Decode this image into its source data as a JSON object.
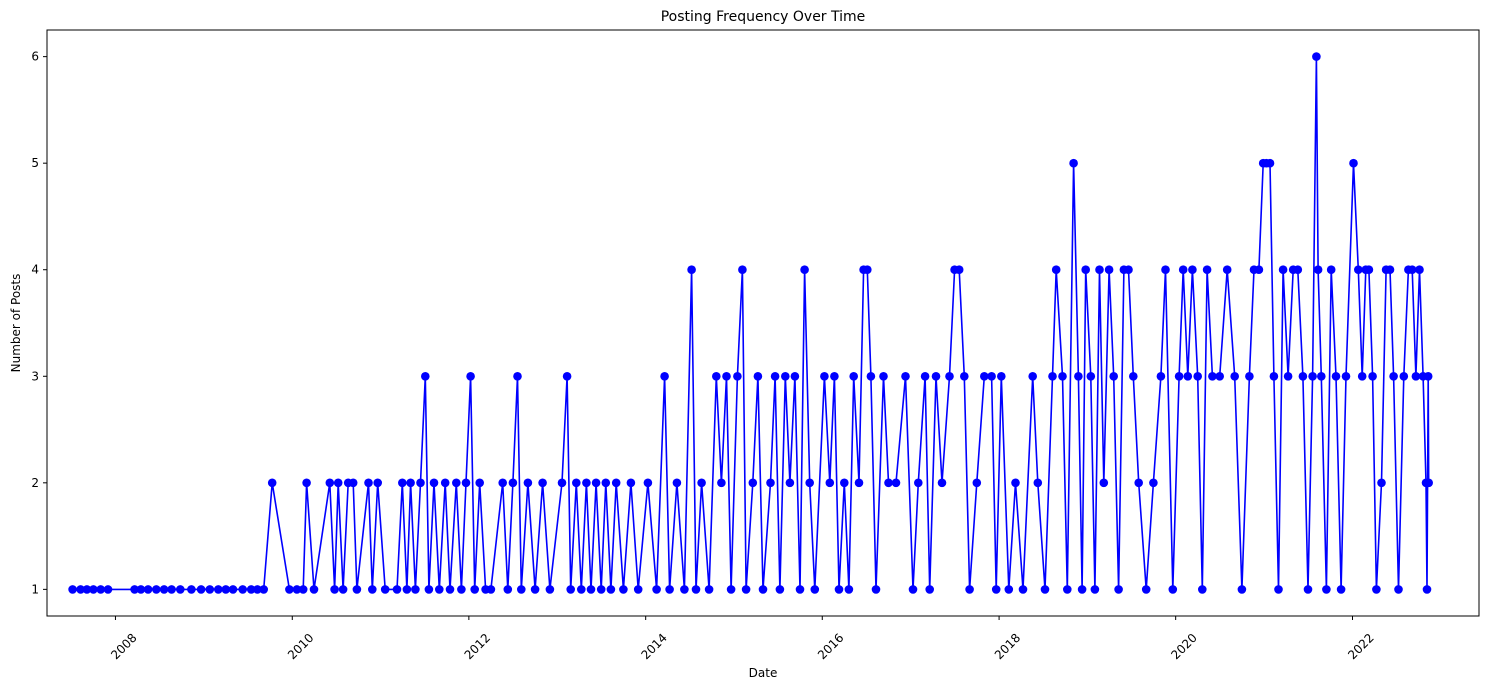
{
  "chart_data": {
    "type": "line",
    "title": "Posting Frequency Over Time",
    "xlabel": "Date",
    "ylabel": "Number of Posts",
    "x_tick_labels": [
      "2008",
      "2010",
      "2012",
      "2014",
      "2016",
      "2018",
      "2020",
      "2022"
    ],
    "y_tick_labels": [
      "1",
      "2",
      "3",
      "4",
      "5",
      "6"
    ],
    "xlim": [
      "2007-03-24",
      "2023-06-08"
    ],
    "ylim": [
      0.75,
      6.25
    ],
    "grid": false,
    "legend": "none",
    "line_color": "#0000ff",
    "marker": "filled-circle",
    "series": [
      {
        "points": [
          [
            "2007-07-08",
            1
          ],
          [
            "2007-08-10",
            1
          ],
          [
            "2007-09-05",
            1
          ],
          [
            "2007-10-02",
            1
          ],
          [
            "2007-11-01",
            1
          ],
          [
            "2007-12-01",
            1
          ],
          [
            "2008-03-20",
            1
          ],
          [
            "2008-04-15",
            1
          ],
          [
            "2008-05-15",
            1
          ],
          [
            "2008-06-18",
            1
          ],
          [
            "2008-07-20",
            1
          ],
          [
            "2008-08-20",
            1
          ],
          [
            "2008-09-25",
            1
          ],
          [
            "2008-11-10",
            1
          ],
          [
            "2008-12-20",
            1
          ],
          [
            "2009-01-25",
            1
          ],
          [
            "2009-03-01",
            1
          ],
          [
            "2009-04-01",
            1
          ],
          [
            "2009-05-01",
            1
          ],
          [
            "2009-06-10",
            1
          ],
          [
            "2009-07-15",
            1
          ],
          [
            "2009-08-10",
            1
          ],
          [
            "2009-09-05",
            1
          ],
          [
            "2009-10-10",
            2
          ],
          [
            "2009-12-20",
            1
          ],
          [
            "2010-01-20",
            1
          ],
          [
            "2010-02-15",
            1
          ],
          [
            "2010-03-01",
            2
          ],
          [
            "2010-04-01",
            1
          ],
          [
            "2010-06-05",
            2
          ],
          [
            "2010-06-25",
            1
          ],
          [
            "2010-07-10",
            2
          ],
          [
            "2010-07-30",
            1
          ],
          [
            "2010-08-20",
            2
          ],
          [
            "2010-09-10",
            2
          ],
          [
            "2010-09-25",
            1
          ],
          [
            "2010-11-12",
            2
          ],
          [
            "2010-11-28",
            1
          ],
          [
            "2010-12-20",
            2
          ],
          [
            "2011-01-20",
            1
          ],
          [
            "2011-03-10",
            1
          ],
          [
            "2011-04-01",
            2
          ],
          [
            "2011-04-20",
            1
          ],
          [
            "2011-05-05",
            2
          ],
          [
            "2011-05-25",
            1
          ],
          [
            "2011-06-15",
            2
          ],
          [
            "2011-07-05",
            3
          ],
          [
            "2011-07-20",
            1
          ],
          [
            "2011-08-10",
            2
          ],
          [
            "2011-09-01",
            1
          ],
          [
            "2011-09-25",
            2
          ],
          [
            "2011-10-15",
            1
          ],
          [
            "2011-11-10",
            2
          ],
          [
            "2011-12-01",
            1
          ],
          [
            "2011-12-20",
            2
          ],
          [
            "2012-01-08",
            3
          ],
          [
            "2012-01-25",
            1
          ],
          [
            "2012-02-15",
            2
          ],
          [
            "2012-03-10",
            1
          ],
          [
            "2012-04-01",
            1
          ],
          [
            "2012-05-20",
            2
          ],
          [
            "2012-06-10",
            1
          ],
          [
            "2012-07-01",
            2
          ],
          [
            "2012-07-20",
            3
          ],
          [
            "2012-08-05",
            1
          ],
          [
            "2012-09-01",
            2
          ],
          [
            "2012-10-01",
            1
          ],
          [
            "2012-11-01",
            2
          ],
          [
            "2012-12-01",
            1
          ],
          [
            "2013-01-20",
            2
          ],
          [
            "2013-02-10",
            3
          ],
          [
            "2013-02-25",
            1
          ],
          [
            "2013-03-20",
            2
          ],
          [
            "2013-04-10",
            1
          ],
          [
            "2013-05-01",
            2
          ],
          [
            "2013-05-20",
            1
          ],
          [
            "2013-06-10",
            2
          ],
          [
            "2013-07-01",
            1
          ],
          [
            "2013-07-20",
            2
          ],
          [
            "2013-08-10",
            1
          ],
          [
            "2013-09-01",
            2
          ],
          [
            "2013-10-01",
            1
          ],
          [
            "2013-11-01",
            2
          ],
          [
            "2013-12-01",
            1
          ],
          [
            "2014-01-10",
            2
          ],
          [
            "2014-02-15",
            1
          ],
          [
            "2014-03-20",
            3
          ],
          [
            "2014-04-10",
            1
          ],
          [
            "2014-05-10",
            2
          ],
          [
            "2014-06-10",
            1
          ],
          [
            "2014-07-10",
            4
          ],
          [
            "2014-07-28",
            1
          ],
          [
            "2014-08-20",
            2
          ],
          [
            "2014-09-20",
            1
          ],
          [
            "2014-10-20",
            3
          ],
          [
            "2014-11-10",
            2
          ],
          [
            "2014-12-01",
            3
          ],
          [
            "2014-12-20",
            1
          ],
          [
            "2015-01-15",
            3
          ],
          [
            "2015-02-05",
            4
          ],
          [
            "2015-02-20",
            1
          ],
          [
            "2015-03-20",
            2
          ],
          [
            "2015-04-10",
            3
          ],
          [
            "2015-05-01",
            1
          ],
          [
            "2015-06-01",
            2
          ],
          [
            "2015-06-20",
            3
          ],
          [
            "2015-07-10",
            1
          ],
          [
            "2015-08-01",
            3
          ],
          [
            "2015-08-20",
            2
          ],
          [
            "2015-09-10",
            3
          ],
          [
            "2015-10-01",
            1
          ],
          [
            "2015-10-20",
            4
          ],
          [
            "2015-11-10",
            2
          ],
          [
            "2015-12-01",
            1
          ],
          [
            "2016-01-10",
            3
          ],
          [
            "2016-02-01",
            2
          ],
          [
            "2016-02-20",
            3
          ],
          [
            "2016-03-10",
            1
          ],
          [
            "2016-04-01",
            2
          ],
          [
            "2016-04-20",
            1
          ],
          [
            "2016-05-10",
            3
          ],
          [
            "2016-06-01",
            2
          ],
          [
            "2016-06-20",
            4
          ],
          [
            "2016-07-05",
            4
          ],
          [
            "2016-07-20",
            3
          ],
          [
            "2016-08-10",
            1
          ],
          [
            "2016-09-10",
            3
          ],
          [
            "2016-10-01",
            2
          ],
          [
            "2016-11-01",
            2
          ],
          [
            "2016-12-10",
            3
          ],
          [
            "2017-01-10",
            1
          ],
          [
            "2017-02-01",
            2
          ],
          [
            "2017-03-01",
            3
          ],
          [
            "2017-03-20",
            1
          ],
          [
            "2017-04-15",
            3
          ],
          [
            "2017-05-10",
            2
          ],
          [
            "2017-06-10",
            3
          ],
          [
            "2017-07-01",
            4
          ],
          [
            "2017-07-20",
            4
          ],
          [
            "2017-08-10",
            3
          ],
          [
            "2017-09-01",
            1
          ],
          [
            "2017-10-01",
            2
          ],
          [
            "2017-11-01",
            3
          ],
          [
            "2017-12-01",
            3
          ],
          [
            "2017-12-20",
            1
          ],
          [
            "2018-01-10",
            3
          ],
          [
            "2018-02-10",
            1
          ],
          [
            "2018-03-10",
            2
          ],
          [
            "2018-04-10",
            1
          ],
          [
            "2018-05-20",
            3
          ],
          [
            "2018-06-10",
            2
          ],
          [
            "2018-07-10",
            1
          ],
          [
            "2018-08-10",
            3
          ],
          [
            "2018-08-25",
            4
          ],
          [
            "2018-09-20",
            3
          ],
          [
            "2018-10-10",
            1
          ],
          [
            "2018-11-05",
            5
          ],
          [
            "2018-11-25",
            3
          ],
          [
            "2018-12-10",
            1
          ],
          [
            "2018-12-25",
            4
          ],
          [
            "2019-01-15",
            3
          ],
          [
            "2019-02-01",
            1
          ],
          [
            "2019-02-20",
            4
          ],
          [
            "2019-03-10",
            2
          ],
          [
            "2019-04-01",
            4
          ],
          [
            "2019-04-20",
            3
          ],
          [
            "2019-05-10",
            1
          ],
          [
            "2019-06-01",
            4
          ],
          [
            "2019-06-20",
            4
          ],
          [
            "2019-07-10",
            3
          ],
          [
            "2019-08-01",
            2
          ],
          [
            "2019-09-01",
            1
          ],
          [
            "2019-10-01",
            2
          ],
          [
            "2019-11-01",
            3
          ],
          [
            "2019-11-20",
            4
          ],
          [
            "2019-12-20",
            1
          ],
          [
            "2020-01-15",
            3
          ],
          [
            "2020-02-01",
            4
          ],
          [
            "2020-02-20",
            3
          ],
          [
            "2020-03-10",
            4
          ],
          [
            "2020-04-01",
            3
          ],
          [
            "2020-04-20",
            1
          ],
          [
            "2020-05-10",
            4
          ],
          [
            "2020-06-01",
            3
          ],
          [
            "2020-07-01",
            3
          ],
          [
            "2020-08-01",
            4
          ],
          [
            "2020-09-01",
            3
          ],
          [
            "2020-10-01",
            1
          ],
          [
            "2020-11-01",
            3
          ],
          [
            "2020-11-20",
            4
          ],
          [
            "2020-12-10",
            4
          ],
          [
            "2020-12-28",
            5
          ],
          [
            "2021-01-10",
            5
          ],
          [
            "2021-01-25",
            5
          ],
          [
            "2021-02-10",
            3
          ],
          [
            "2021-03-01",
            1
          ],
          [
            "2021-03-20",
            4
          ],
          [
            "2021-04-10",
            3
          ],
          [
            "2021-05-01",
            4
          ],
          [
            "2021-05-20",
            4
          ],
          [
            "2021-06-10",
            3
          ],
          [
            "2021-07-01",
            1
          ],
          [
            "2021-07-20",
            3
          ],
          [
            "2021-08-05",
            6
          ],
          [
            "2021-08-12",
            4
          ],
          [
            "2021-08-25",
            3
          ],
          [
            "2021-09-15",
            1
          ],
          [
            "2021-10-05",
            4
          ],
          [
            "2021-10-25",
            3
          ],
          [
            "2021-11-15",
            1
          ],
          [
            "2021-12-05",
            3
          ],
          [
            "2022-01-05",
            5
          ],
          [
            "2022-01-25",
            4
          ],
          [
            "2022-02-10",
            3
          ],
          [
            "2022-02-25",
            4
          ],
          [
            "2022-03-10",
            4
          ],
          [
            "2022-03-25",
            3
          ],
          [
            "2022-04-10",
            1
          ],
          [
            "2022-05-01",
            2
          ],
          [
            "2022-05-20",
            4
          ],
          [
            "2022-06-05",
            4
          ],
          [
            "2022-06-20",
            3
          ],
          [
            "2022-07-10",
            1
          ],
          [
            "2022-08-01",
            3
          ],
          [
            "2022-08-20",
            4
          ],
          [
            "2022-09-05",
            4
          ],
          [
            "2022-09-20",
            3
          ],
          [
            "2022-10-05",
            4
          ],
          [
            "2022-10-20",
            3
          ],
          [
            "2022-11-01",
            2
          ],
          [
            "2022-11-05",
            1
          ],
          [
            "2022-11-10",
            3
          ],
          [
            "2022-11-12",
            2
          ]
        ]
      }
    ]
  }
}
